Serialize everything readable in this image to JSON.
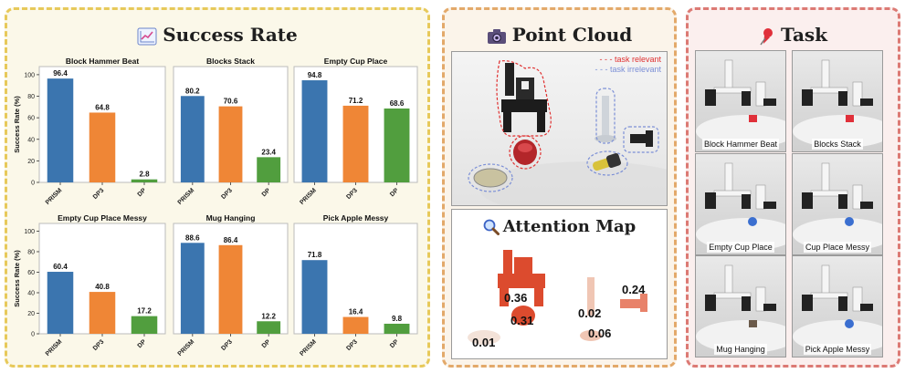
{
  "panels": {
    "success_rate": {
      "title": "Success Rate",
      "icon": "chart-icon"
    },
    "point_cloud": {
      "title": "Point Cloud",
      "icon": "camera-icon",
      "legend": {
        "relevant": "task relevant",
        "irrelevant": "task irrelevant"
      },
      "colors": {
        "relevant": "#e03131",
        "irrelevant": "#7b8fd6"
      }
    },
    "attention_map": {
      "title": "Attention Map",
      "icon": "magnifier-icon",
      "values": [
        "0.36",
        "0.31",
        "0.24",
        "0.02",
        "0.06",
        "0.01"
      ]
    },
    "task": {
      "title": "Task",
      "icon": "pushpin-icon",
      "tiles": [
        "Block Hammer Beat",
        "Blocks Stack",
        "Empty Cup Place",
        "Cup Place Messy",
        "Mug Hanging",
        "Pick Apple Messy"
      ]
    }
  },
  "chart_data": [
    {
      "type": "bar",
      "title": "Block Hammer Beat",
      "categories": [
        "PRISM",
        "DP3",
        "DP"
      ],
      "values": [
        96.4,
        64.8,
        2.8
      ],
      "ylabel": "Success Rate (%)",
      "ylim": [
        0,
        100
      ],
      "yticks": [
        0,
        20,
        40,
        60,
        80,
        100
      ],
      "value_labels": [
        "96.4",
        "64.8",
        "2.8"
      ],
      "colors": [
        "#3b75af",
        "#ef8636",
        "#519e3e"
      ]
    },
    {
      "type": "bar",
      "title": "Blocks Stack",
      "categories": [
        "PRISM",
        "DP3",
        "DP"
      ],
      "values": [
        80.2,
        70.6,
        23.4
      ],
      "ylabel": "",
      "ylim": [
        0,
        100
      ],
      "yticks": [],
      "value_labels": [
        "80.2",
        "70.6",
        "23.4"
      ],
      "colors": [
        "#3b75af",
        "#ef8636",
        "#519e3e"
      ]
    },
    {
      "type": "bar",
      "title": "Empty Cup Place",
      "categories": [
        "PRISM",
        "DP3",
        "DP"
      ],
      "values": [
        94.8,
        71.2,
        68.6
      ],
      "ylabel": "",
      "ylim": [
        0,
        100
      ],
      "yticks": [],
      "value_labels": [
        "94.8",
        "71.2",
        "68.6"
      ],
      "colors": [
        "#3b75af",
        "#ef8636",
        "#519e3e"
      ]
    },
    {
      "type": "bar",
      "title": "Empty Cup Place Messy",
      "categories": [
        "PRISM",
        "DP3",
        "DP"
      ],
      "values": [
        60.4,
        40.8,
        17.2
      ],
      "ylabel": "Success Rate (%)",
      "ylim": [
        0,
        100
      ],
      "yticks": [
        0,
        20,
        40,
        60,
        80,
        100
      ],
      "value_labels": [
        "60.4",
        "40.8",
        "17.2"
      ],
      "colors": [
        "#3b75af",
        "#ef8636",
        "#519e3e"
      ]
    },
    {
      "type": "bar",
      "title": "Mug Hanging",
      "categories": [
        "PRISM",
        "DP3",
        "DP"
      ],
      "values": [
        88.6,
        86.4,
        12.2
      ],
      "ylabel": "",
      "ylim": [
        0,
        100
      ],
      "yticks": [],
      "value_labels": [
        "88.6",
        "86.4",
        "12.2"
      ],
      "colors": [
        "#3b75af",
        "#ef8636",
        "#519e3e"
      ]
    },
    {
      "type": "bar",
      "title": "Pick Apple Messy",
      "categories": [
        "PRISM",
        "DP3",
        "DP"
      ],
      "values": [
        71.8,
        16.4,
        9.8
      ],
      "ylabel": "",
      "ylim": [
        0,
        100
      ],
      "yticks": [],
      "value_labels": [
        "71.8",
        "16.4",
        "9.8"
      ],
      "colors": [
        "#3b75af",
        "#ef8636",
        "#519e3e"
      ]
    }
  ]
}
